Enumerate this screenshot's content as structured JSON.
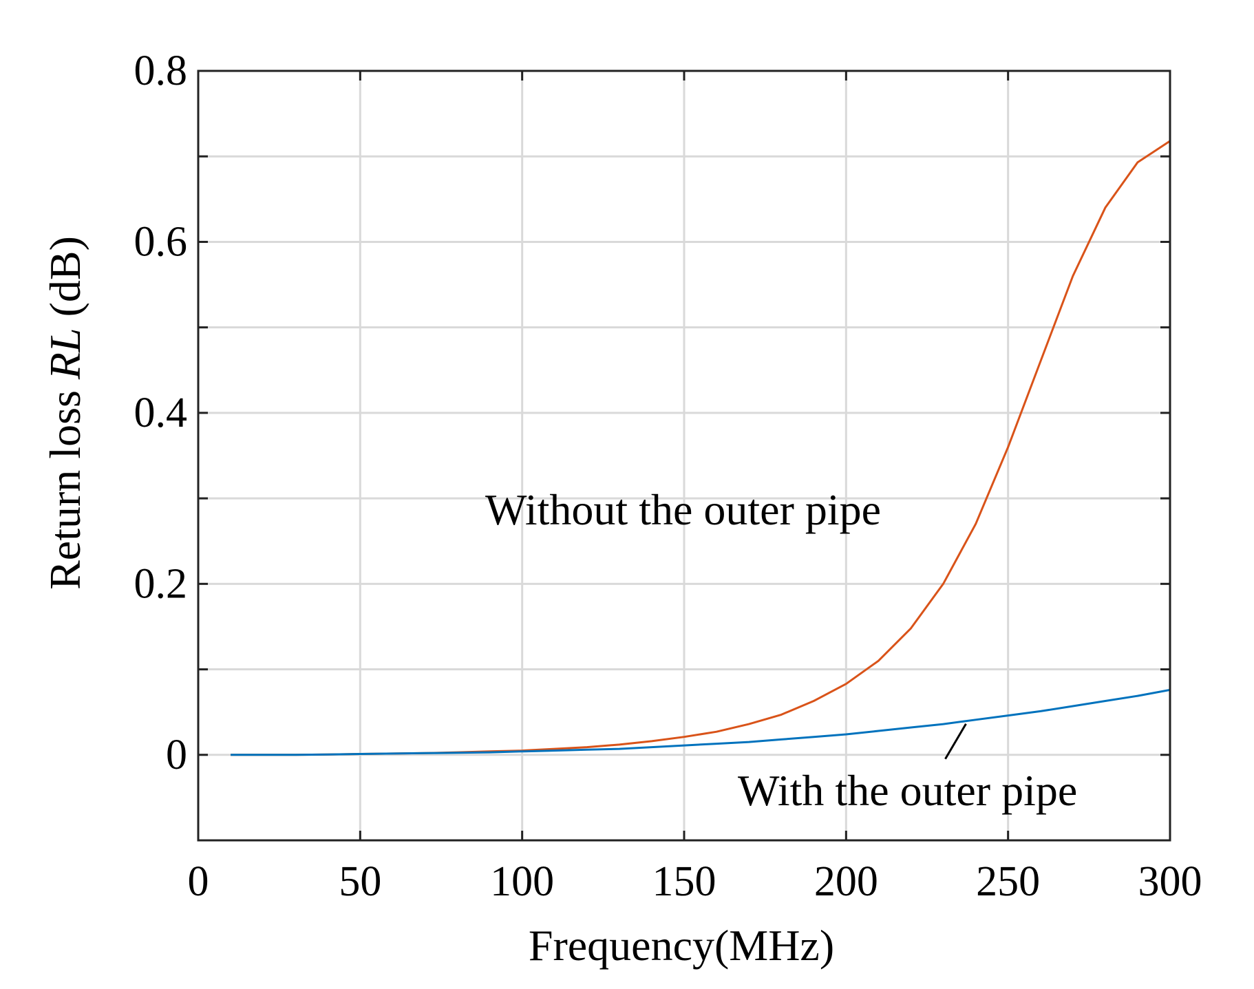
{
  "chart_data": {
    "type": "line",
    "title": "",
    "xlabel": "Frequency(MHz)",
    "ylabel_parts": [
      "Return loss ",
      "RL",
      " (dB)"
    ],
    "xlim": [
      0,
      300
    ],
    "ylim": [
      -0.1,
      0.8
    ],
    "xticks": [
      0,
      50,
      100,
      150,
      200,
      250,
      300
    ],
    "xtick_labels": [
      "0",
      "50",
      "100",
      "150",
      "200",
      "250",
      "300"
    ],
    "yticks": [
      0,
      0.2,
      0.4,
      0.6,
      0.8
    ],
    "ytick_labels": [
      "0",
      "0.2",
      "0.4",
      "0.6",
      "0.8"
    ],
    "grid": true,
    "x": [
      10,
      20,
      30,
      40,
      50,
      60,
      70,
      80,
      90,
      100,
      110,
      120,
      130,
      140,
      150,
      160,
      170,
      180,
      190,
      200,
      210,
      220,
      230,
      240,
      250,
      260,
      270,
      280,
      290,
      300
    ],
    "series": [
      {
        "name": "Without the outer pipe",
        "color": "#d95319",
        "values": [
          0.0,
          0.0,
          0.0,
          0.0005,
          0.001,
          0.0015,
          0.002,
          0.003,
          0.004,
          0.005,
          0.007,
          0.009,
          0.012,
          0.016,
          0.021,
          0.027,
          0.036,
          0.047,
          0.063,
          0.083,
          0.11,
          0.148,
          0.2,
          0.27,
          0.36,
          0.46,
          0.56,
          0.64,
          0.693,
          0.718
        ]
      },
      {
        "name": "With the outer pipe",
        "color": "#0072bd",
        "values": [
          0.0,
          0.0,
          0.0,
          0.0005,
          0.001,
          0.0015,
          0.002,
          0.0025,
          0.003,
          0.004,
          0.005,
          0.006,
          0.007,
          0.009,
          0.011,
          0.013,
          0.015,
          0.018,
          0.021,
          0.024,
          0.028,
          0.032,
          0.036,
          0.041,
          0.046,
          0.051,
          0.057,
          0.063,
          0.069,
          0.076
        ]
      }
    ],
    "annotations": [
      {
        "text": "Without the outer pipe",
        "series": 0
      },
      {
        "text": "With the outer pipe",
        "series": 1,
        "pointer_x": 237
      }
    ]
  }
}
